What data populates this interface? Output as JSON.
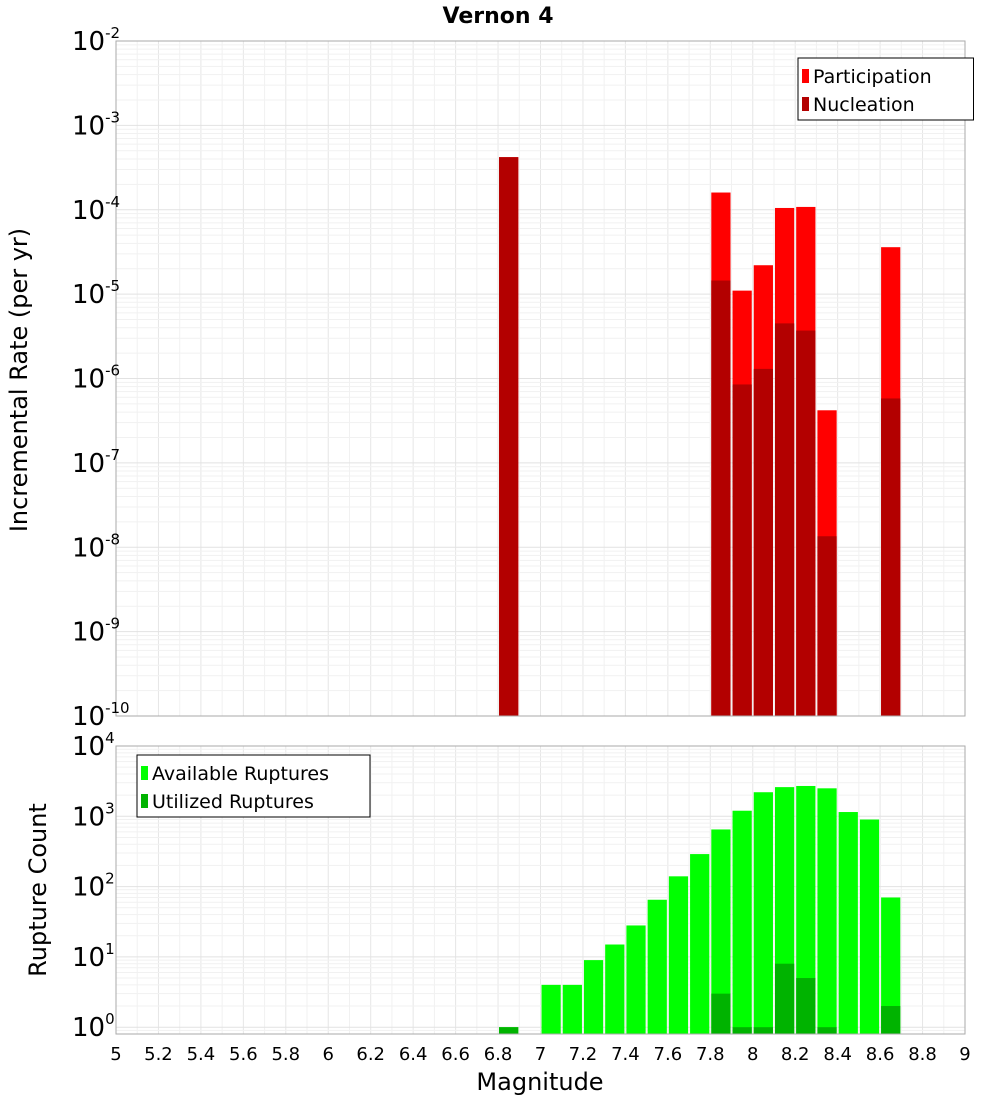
{
  "chart_data": [
    {
      "type": "bar",
      "panel": "top",
      "title": "Vernon 4",
      "xlabel": "",
      "ylabel": "Incremental Rate (per yr)",
      "yscale": "log",
      "ylim": [
        1e-10,
        0.01
      ],
      "xlim": [
        5,
        9
      ],
      "bin_width": 0.1,
      "legend_position": "top-right",
      "series": [
        {
          "name": "Participation",
          "color": "#ff0000",
          "x": [
            6.85,
            7.85,
            7.95,
            8.05,
            8.15,
            8.25,
            8.35,
            8.65
          ],
          "values": [
            0.00042,
            0.00016,
            1.1e-05,
            2.2e-05,
            0.000105,
            0.000108,
            4.2e-07,
            3.6e-05
          ]
        },
        {
          "name": "Nucleation",
          "color": "#b30000",
          "x": [
            6.85,
            7.85,
            7.95,
            8.05,
            8.15,
            8.25,
            8.35,
            8.65
          ],
          "values": [
            0.00042,
            1.45e-05,
            8.5e-07,
            1.3e-06,
            4.5e-06,
            3.7e-06,
            1.35e-08,
            5.8e-07
          ]
        }
      ]
    },
    {
      "type": "bar",
      "panel": "bottom",
      "title": "",
      "xlabel": "Magnitude",
      "ylabel": "Rupture Count",
      "yscale": "log",
      "ylim": [
        0.8,
        10000
      ],
      "xlim": [
        5,
        9
      ],
      "bin_width": 0.1,
      "legend_position": "top-left",
      "x_ticks": [
        "5",
        "5.2",
        "5.4",
        "5.6",
        "5.8",
        "6",
        "6.2",
        "6.4",
        "6.6",
        "6.8",
        "7",
        "7.2",
        "7.4",
        "7.6",
        "7.8",
        "8",
        "8.2",
        "8.4",
        "8.6",
        "8.8",
        "9"
      ],
      "series": [
        {
          "name": "Available Ruptures",
          "color": "#00ff00",
          "x": [
            6.85,
            7.05,
            7.15,
            7.25,
            7.35,
            7.45,
            7.55,
            7.65,
            7.75,
            7.85,
            7.95,
            8.05,
            8.15,
            8.25,
            8.35,
            8.45,
            8.55,
            8.65
          ],
          "values": [
            1,
            4,
            4,
            9,
            15,
            28,
            65,
            140,
            290,
            650,
            1200,
            2200,
            2600,
            2700,
            2500,
            1150,
            900,
            70
          ]
        },
        {
          "name": "Utilized Ruptures",
          "color": "#00b300",
          "x": [
            6.85,
            7.85,
            7.95,
            8.05,
            8.15,
            8.25,
            8.35,
            8.65
          ],
          "values": [
            1,
            3,
            1,
            1,
            8,
            5,
            1,
            2
          ]
        }
      ]
    }
  ]
}
